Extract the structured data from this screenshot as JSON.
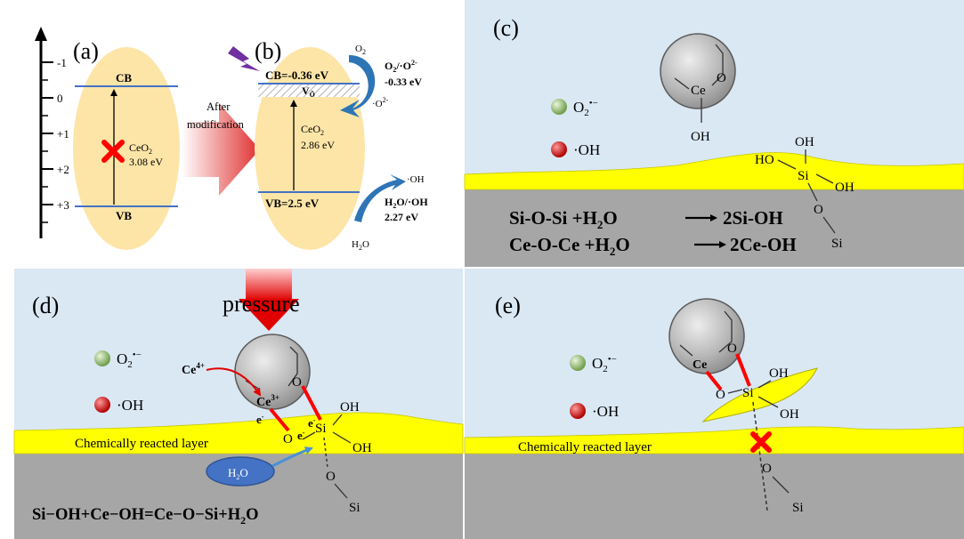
{
  "panels": {
    "a": {
      "label": "(a)",
      "axis_ticks": [
        "-1",
        "0",
        "+1",
        "+2",
        "+3"
      ],
      "cb": "CB",
      "vb": "VB",
      "gap_name": "CeO",
      "gap_sub": "2",
      "gap_value": "3.08 eV"
    },
    "arrow_text_1": "After",
    "arrow_text_2": "modification",
    "b": {
      "label": "(b)",
      "cb": "CB=-0.36 eV",
      "vacancy": "V",
      "vacancy_sub": "Ö",
      "vb": "VB=2.5 eV",
      "gap_name": "CeO",
      "gap_sub": "2",
      "gap_value": "2.86 eV",
      "o2": "O",
      "o2_sub": "2",
      "o2_couple": "O",
      "o2_couple_sub": "2",
      "o2_couple_rest": "/·O",
      "o2_couple_sup": "2-",
      "o2_potential": "-0.33 eV",
      "o2_radical": "·O",
      "o2_radical_sup": "2-",
      "oh_radical": "·OH",
      "h2o_couple": "H",
      "h2o_couple_sub": "2",
      "h2o_couple_rest": "O/·OH",
      "h2o_potential": "2.27 eV",
      "h2o": "H",
      "h2o_sub": "2",
      "h2o_rest": "O"
    },
    "c": {
      "label": "(c)",
      "legend_o2": "O",
      "legend_o2_sub": "2",
      "legend_o2_sup": "•−",
      "legend_oh": "·OH",
      "ce": "Ce",
      "o": "O",
      "oh": "OH",
      "si_oh_top": "OH",
      "si_ho": "HO",
      "si": "Si",
      "si_oh_right": "OH",
      "si_o": "O",
      "si_bottom": "Si",
      "eq1_left": "Si-O-Si +H",
      "eq1_sub": "2",
      "eq1_mid": "O",
      "eq1_right": "2Si-OH",
      "eq2_left": "Ce-O-Ce +H",
      "eq2_sub": "2",
      "eq2_mid": "O",
      "eq2_right": "2Ce-OH"
    },
    "d": {
      "label": "(d)",
      "pressure": "pressure",
      "legend_o2": "O",
      "legend_o2_sub": "2",
      "legend_o2_sup": "•−",
      "legend_oh": "·OH",
      "ce4": "Ce",
      "ce4_sup": "4+",
      "ce3": "Ce",
      "ce3_sup": "3+",
      "o": "O",
      "e": "e",
      "e_sup": "-",
      "o_left": "O",
      "si": "Si",
      "oh_top": "OH",
      "oh_right": "OH",
      "o_bottom": "O",
      "si_bottom": "Si",
      "layer": "Chemically reacted layer",
      "h2o": "H",
      "h2o_sub": "2",
      "h2o_rest": "O",
      "eq_left": "Si−OH+Ce−OH=Ce−O−Si+H",
      "eq_sub": "2",
      "eq_rest": "O"
    },
    "e": {
      "label": "(e)",
      "legend_o2": "O",
      "legend_o2_sub": "2",
      "legend_o2_sup": "•−",
      "legend_oh": "·OH",
      "ce": "Ce",
      "o": "O",
      "o_left": "O",
      "si": "Si",
      "oh_top": "OH",
      "oh_right": "OH",
      "layer": "Chemically reacted layer",
      "o_bottom": "O",
      "si_bottom": "Si"
    }
  },
  "colors": {
    "panel_bg": "#dae8f4",
    "substrate": "#a6a6a6",
    "reacted_layer": "#ffff00",
    "band_fill": "#fde5a8",
    "band_line": "#4472c4",
    "curve_arrow": "#2e75b6",
    "red": "#ff0000",
    "lightning": "#7030a0",
    "water_drop": "#4472c4"
  }
}
